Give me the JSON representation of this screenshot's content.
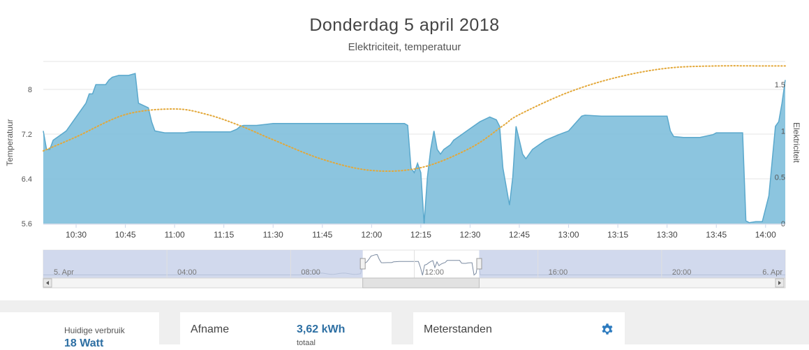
{
  "title": "Donderdag 5 april 2018",
  "subtitle": "Elektriciteit, temperatuur",
  "chart_data": {
    "type": "area",
    "x_ticks": [
      "10:30",
      "10:45",
      "11:00",
      "11:15",
      "11:30",
      "11:45",
      "12:00",
      "12:15",
      "12:30",
      "12:45",
      "13:00",
      "13:15",
      "13:30",
      "13:45",
      "14:00"
    ],
    "x_range": [
      "10:20",
      "14:06"
    ],
    "y_left": {
      "label": "Temperatuur",
      "ticks": [
        "5.6",
        "6.4",
        "7.2",
        "8"
      ],
      "range": [
        5.6,
        8.5
      ]
    },
    "y_right": {
      "label": "Elektriciteit",
      "ticks": [
        "0",
        "0.5",
        "1",
        "1.5"
      ],
      "range": [
        0,
        1.75
      ]
    },
    "series": [
      {
        "type": "area",
        "axis": "right",
        "color": "#7fbfdc",
        "points": [
          [
            "10:20",
            1.0
          ],
          [
            "10:21",
            0.8
          ],
          [
            "10:22",
            0.8
          ],
          [
            "10:23",
            0.9
          ],
          [
            "10:25",
            0.95
          ],
          [
            "10:27",
            1.0
          ],
          [
            "10:29",
            1.1
          ],
          [
            "10:31",
            1.2
          ],
          [
            "10:33",
            1.3
          ],
          [
            "10:34",
            1.4
          ],
          [
            "10:35",
            1.4
          ],
          [
            "10:36",
            1.5
          ],
          [
            "10:38",
            1.5
          ],
          [
            "10:39",
            1.5
          ],
          [
            "10:40",
            1.55
          ],
          [
            "10:41",
            1.58
          ],
          [
            "10:43",
            1.6
          ],
          [
            "10:44",
            1.6
          ],
          [
            "10:46",
            1.6
          ],
          [
            "10:48",
            1.62
          ],
          [
            "10:49",
            1.3
          ],
          [
            "10:52",
            1.25
          ],
          [
            "10:53",
            1.1
          ],
          [
            "10:54",
            1.0
          ],
          [
            "10:57",
            0.98
          ],
          [
            "10:58",
            0.98
          ],
          [
            "11:00",
            0.98
          ],
          [
            "11:03",
            0.98
          ],
          [
            "11:05",
            0.99
          ],
          [
            "11:10",
            0.99
          ],
          [
            "11:15",
            0.99
          ],
          [
            "11:17",
            0.99
          ],
          [
            "11:19",
            1.02
          ],
          [
            "11:20",
            1.05
          ],
          [
            "11:21",
            1.06
          ],
          [
            "11:25",
            1.06
          ],
          [
            "11:30",
            1.08
          ],
          [
            "11:35",
            1.08
          ],
          [
            "11:40",
            1.08
          ],
          [
            "11:45",
            1.08
          ],
          [
            "11:50",
            1.08
          ],
          [
            "11:55",
            1.08
          ],
          [
            "12:00",
            1.08
          ],
          [
            "12:05",
            1.08
          ],
          [
            "12:10",
            1.08
          ],
          [
            "12:11",
            1.06
          ],
          [
            "12:12",
            0.6
          ],
          [
            "12:13",
            0.55
          ],
          [
            "12:14",
            0.65
          ],
          [
            "12:15",
            0.55
          ],
          [
            "12:16",
            0.0
          ],
          [
            "12:17",
            0.5
          ],
          [
            "12:18",
            0.8
          ],
          [
            "12:19",
            1.0
          ],
          [
            "12:20",
            0.8
          ],
          [
            "12:21",
            0.75
          ],
          [
            "12:22",
            0.8
          ],
          [
            "12:24",
            0.85
          ],
          [
            "12:25",
            0.9
          ],
          [
            "12:27",
            0.95
          ],
          [
            "12:29",
            1.0
          ],
          [
            "12:31",
            1.05
          ],
          [
            "12:33",
            1.1
          ],
          [
            "12:36",
            1.15
          ],
          [
            "12:38",
            1.12
          ],
          [
            "12:39",
            1.05
          ],
          [
            "12:40",
            0.6
          ],
          [
            "12:42",
            0.2
          ],
          [
            "12:43",
            0.5
          ],
          [
            "12:44",
            1.05
          ],
          [
            "12:45",
            0.9
          ],
          [
            "12:46",
            0.75
          ],
          [
            "12:47",
            0.7
          ],
          [
            "12:49",
            0.8
          ],
          [
            "12:51",
            0.85
          ],
          [
            "12:53",
            0.9
          ],
          [
            "12:55",
            0.93
          ],
          [
            "12:57",
            0.96
          ],
          [
            "13:00",
            1.0
          ],
          [
            "13:02",
            1.08
          ],
          [
            "13:04",
            1.16
          ],
          [
            "13:05",
            1.17
          ],
          [
            "13:10",
            1.16
          ],
          [
            "13:15",
            1.16
          ],
          [
            "13:20",
            1.16
          ],
          [
            "13:25",
            1.16
          ],
          [
            "13:28",
            1.16
          ],
          [
            "13:30",
            1.16
          ],
          [
            "13:31",
            1.0
          ],
          [
            "13:32",
            0.94
          ],
          [
            "13:35",
            0.93
          ],
          [
            "13:40",
            0.93
          ],
          [
            "13:44",
            0.96
          ],
          [
            "13:45",
            0.98
          ],
          [
            "13:50",
            0.98
          ],
          [
            "13:53",
            0.98
          ],
          [
            "13:54",
            0.03
          ],
          [
            "13:55",
            0.01
          ],
          [
            "13:57",
            0.02
          ],
          [
            "13:59",
            0.02
          ],
          [
            "14:01",
            0.3
          ],
          [
            "14:03",
            1.05
          ],
          [
            "14:04",
            1.1
          ],
          [
            "14:05",
            1.3
          ],
          [
            "14:06",
            1.55
          ]
        ]
      },
      {
        "type": "line",
        "axis": "left",
        "style": "dotted",
        "color": "#e3a83a",
        "points": [
          [
            "10:20",
            6.9
          ],
          [
            "10:30",
            7.15
          ],
          [
            "10:45",
            7.55
          ],
          [
            "11:00",
            7.65
          ],
          [
            "11:10",
            7.55
          ],
          [
            "11:20",
            7.35
          ],
          [
            "11:30",
            7.1
          ],
          [
            "11:45",
            6.75
          ],
          [
            "12:00",
            6.55
          ],
          [
            "12:15",
            6.6
          ],
          [
            "12:30",
            6.95
          ],
          [
            "12:40",
            7.35
          ],
          [
            "12:45",
            7.55
          ],
          [
            "13:00",
            7.95
          ],
          [
            "13:15",
            8.22
          ],
          [
            "13:30",
            8.38
          ],
          [
            "13:45",
            8.42
          ],
          [
            "14:00",
            8.42
          ],
          [
            "14:06",
            8.42
          ]
        ]
      }
    ],
    "navigator": {
      "x_labels": [
        "5. Apr",
        "04:00",
        "08:00",
        "12:00",
        "16:00",
        "20:00",
        "6. Apr"
      ],
      "selected_range": [
        "10:20",
        "14:06"
      ]
    }
  },
  "bottom": {
    "current_label": "Huidige verbruik",
    "current_value": "18 Watt",
    "afname_label": "Afname",
    "afname_value": "3,62 kWh",
    "afname_sub": "totaal",
    "meterstanden_label": "Meterstanden",
    "gear_icon": "gear-icon",
    "gear_color": "#2d7bbf"
  }
}
